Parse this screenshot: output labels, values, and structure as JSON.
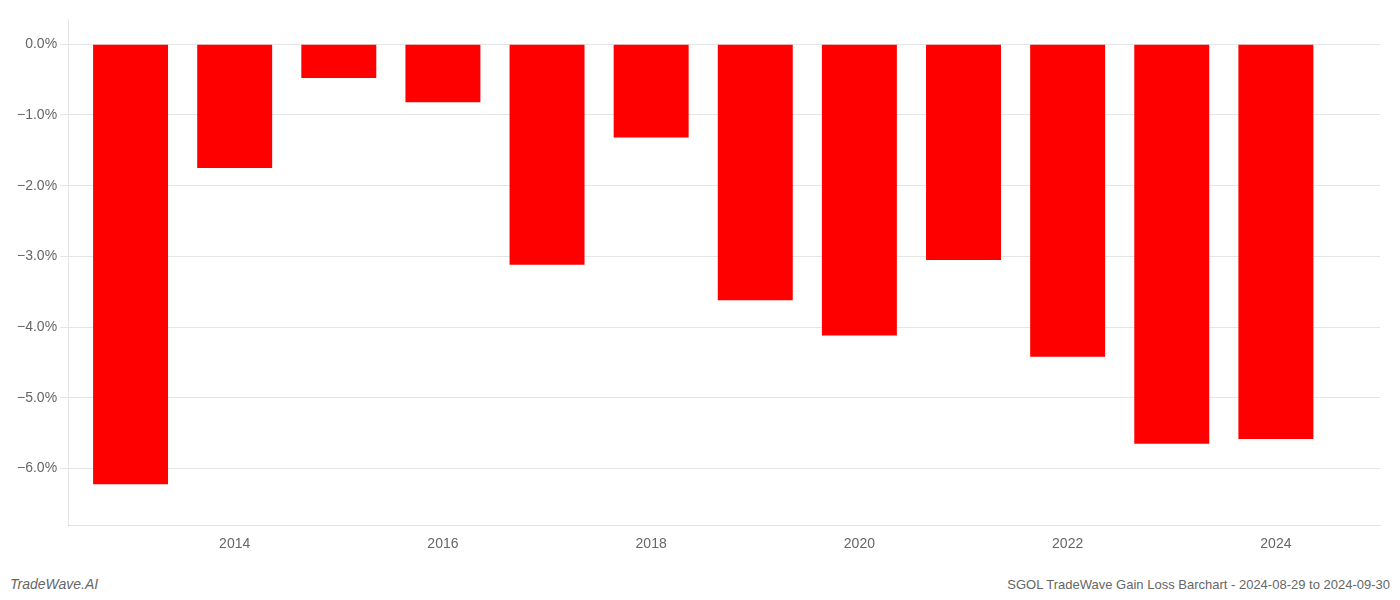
{
  "chart_data": {
    "type": "bar",
    "x": [
      2013,
      2014,
      2015,
      2016,
      2017,
      2018,
      2019,
      2020,
      2021,
      2022,
      2023,
      2024
    ],
    "values": [
      -6.22,
      -1.75,
      -0.48,
      -0.82,
      -3.12,
      -1.32,
      -3.62,
      -4.12,
      -3.05,
      -4.42,
      -5.65,
      -5.58
    ],
    "color": "#ff0000",
    "xlim": [
      2012.4,
      2025.0
    ],
    "xticks": [
      2014,
      2016,
      2018,
      2020,
      2022,
      2024
    ],
    "ylim": [
      -6.8,
      0.35
    ],
    "yticks": [
      {
        "value": 0.0,
        "label": "0.0%"
      },
      {
        "value": -1.0,
        "label": "−1.0%"
      },
      {
        "value": -2.0,
        "label": "−2.0%"
      },
      {
        "value": -3.0,
        "label": "−3.0%"
      },
      {
        "value": -4.0,
        "label": "−4.0%"
      },
      {
        "value": -5.0,
        "label": "−5.0%"
      },
      {
        "value": -6.0,
        "label": "−6.0%"
      }
    ],
    "grid": "y",
    "annotations": [
      "TradeWave.AI",
      "SGOL TradeWave Gain Loss Barchart - 2024-08-29 to 2024-09-30"
    ]
  }
}
